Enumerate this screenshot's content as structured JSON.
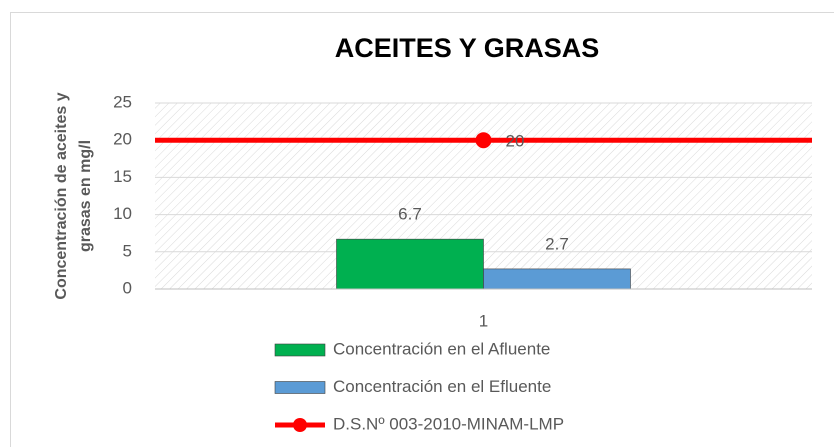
{
  "chart_data": {
    "type": "bar",
    "title": "ACEITES Y GRASAS",
    "y_label": [
      "Concentración de aceites y",
      "grasas en mg/l"
    ],
    "categories": [
      "1"
    ],
    "series": [
      {
        "name": "Concentración en el Afluente",
        "color": "#00b050",
        "values": [
          6.7
        ]
      },
      {
        "name": "Concentración en el Efluente",
        "color": "#5b9bd5",
        "values": [
          2.7
        ]
      },
      {
        "name": "D.S.Nº 003-2010-MINAM-LMP",
        "type": "line",
        "color": "#ff0000",
        "values": [
          20
        ]
      }
    ],
    "ylim": [
      0,
      25
    ],
    "yticks": [
      0,
      5,
      10,
      15,
      20,
      25
    ],
    "grid": true,
    "legend": "bottom"
  }
}
